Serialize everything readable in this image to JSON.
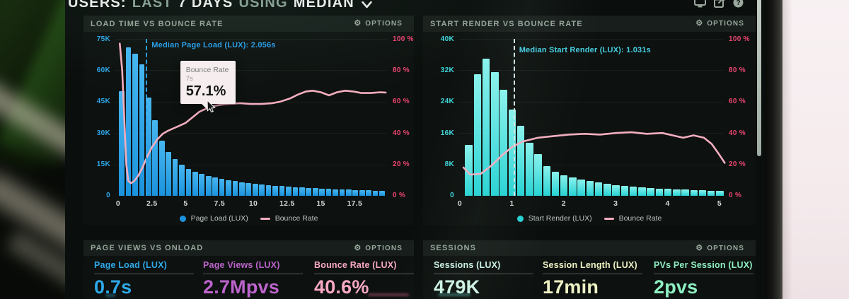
{
  "header": {
    "segments": [
      {
        "text": "USERS:",
        "emphasis": "bright"
      },
      {
        "text": "LAST",
        "emphasis": "dim"
      },
      {
        "text": "7 DAYS",
        "emphasis": "bright"
      },
      {
        "text": "USING",
        "emphasis": "dim"
      },
      {
        "text": "MEDIAN",
        "emphasis": "bright"
      }
    ],
    "dropdown_icon": "chevron-down"
  },
  "window_controls": [
    {
      "icon": "display-icon"
    },
    {
      "icon": "share-icon"
    },
    {
      "icon": "help-icon"
    }
  ],
  "icons": {
    "gear": "⚙"
  },
  "chart_data": [
    {
      "type": "bar+line",
      "title": "LOAD TIME VS BOUNCE RATE",
      "options_label": "OPTIONS",
      "x_unit": "seconds",
      "x_ticks": [
        {
          "label": "0",
          "v": 0
        },
        {
          "label": "2.5",
          "v": 2.5
        },
        {
          "label": "5",
          "v": 5
        },
        {
          "label": "7.5",
          "v": 7.5
        },
        {
          "label": "10",
          "v": 10
        },
        {
          "label": "12.5",
          "v": 12.5
        },
        {
          "label": "15",
          "v": 15
        },
        {
          "label": "17.5",
          "v": 17.5
        }
      ],
      "left_axis": {
        "ticks": [
          "75K",
          "60K",
          "45K",
          "30K",
          "15K",
          "0"
        ],
        "max": 75000,
        "color": "#2ea8ea"
      },
      "right_axis": {
        "ticks": [
          "100 %",
          "80 %",
          "60 %",
          "40 %",
          "20 %",
          "0 %"
        ],
        "max": 100,
        "color": "#ee4673"
      },
      "bar_series": {
        "name": "Page Load (LUX)",
        "color": "#1b93dd",
        "color_top": "#47b6f0",
        "x_start": 0.06,
        "slot": 0.494,
        "values_k": [
          50,
          71,
          68,
          63,
          47,
          36,
          26.5,
          21,
          17.5,
          15,
          13,
          11.5,
          10.5,
          9.6,
          8.8,
          8.1,
          7.5,
          7,
          6.5,
          6.1,
          5.7,
          5.4,
          5.1,
          4.8,
          4.6,
          4.4,
          4.2,
          4,
          3.8,
          3.6,
          3.5,
          3.3,
          3.2,
          3,
          2.9,
          2.8,
          2.7,
          2.6,
          2.5,
          2.4
        ]
      },
      "line_series": {
        "name": "Bounce Rate",
        "color": "#f3aec0",
        "points_x_pct": [
          [
            0.12,
            97
          ],
          [
            0.3,
            80
          ],
          [
            0.45,
            50
          ],
          [
            0.6,
            20
          ],
          [
            0.75,
            9.5
          ],
          [
            0.95,
            8
          ],
          [
            1.2,
            9.5
          ],
          [
            1.5,
            13
          ],
          [
            1.8,
            18
          ],
          [
            2.1,
            24
          ],
          [
            2.5,
            31
          ],
          [
            2.9,
            36
          ],
          [
            3.3,
            39.5
          ],
          [
            3.7,
            41.5
          ],
          [
            4.1,
            43
          ],
          [
            4.5,
            44.5
          ],
          [
            5,
            46.5
          ],
          [
            5.5,
            50
          ],
          [
            6,
            53.5
          ],
          [
            6.5,
            55.5
          ],
          [
            7,
            57.1
          ],
          [
            7.6,
            58
          ],
          [
            8.2,
            58.5
          ],
          [
            9,
            59
          ],
          [
            9.8,
            58.5
          ],
          [
            10.6,
            58.5
          ],
          [
            11.4,
            59
          ],
          [
            12,
            60
          ],
          [
            12.7,
            62
          ],
          [
            13.3,
            64.5
          ],
          [
            13.9,
            66.5
          ],
          [
            14.4,
            67
          ],
          [
            15,
            66
          ],
          [
            15.6,
            64
          ],
          [
            16.2,
            66
          ],
          [
            16.8,
            67
          ],
          [
            17.4,
            66.5
          ],
          [
            18,
            65.5
          ],
          [
            18.7,
            65.5
          ],
          [
            19.4,
            66
          ],
          [
            19.8,
            65.8
          ]
        ]
      },
      "median_line": {
        "label": "Median Page Load (LUX): 2.056s",
        "x": 2.056,
        "line_color": "#2b9fe8",
        "label_color": "#2b9fe8"
      },
      "tooltip": {
        "series": "Bounce Rate",
        "x_value": "7s",
        "value": "57.1%",
        "x": 7,
        "pct": 57.1
      }
    },
    {
      "type": "bar+line",
      "title": "START RENDER VS BOUNCE RATE",
      "options_label": "OPTIONS",
      "x_unit": "seconds",
      "x_ticks": [
        {
          "label": "0",
          "v": 0
        },
        {
          "label": "1",
          "v": 1
        },
        {
          "label": "2",
          "v": 2
        },
        {
          "label": "3",
          "v": 3
        },
        {
          "label": "4",
          "v": 4
        },
        {
          "label": "5",
          "v": 5
        }
      ],
      "left_axis": {
        "ticks": [
          "40K",
          "32K",
          "24K",
          "16K",
          "8K",
          "0"
        ],
        "max": 40000,
        "color": "#3fd8dc"
      },
      "right_axis": {
        "ticks": [
          "100 %",
          "80 %",
          "60 %",
          "40 %",
          "20 %",
          "0 %"
        ],
        "max": 100,
        "color": "#ee4673"
      },
      "bar_series": {
        "name": "Start Render (LUX)",
        "color": "#27d2d4",
        "color_top": "#8af2ec",
        "x_start": 0.1,
        "slot": 0.1667,
        "values_k": [
          13,
          31,
          35,
          31.5,
          27,
          22,
          17.8,
          13.5,
          10.6,
          7.6,
          6.2,
          5.3,
          4.7,
          4.2,
          3.8,
          3.4,
          3.1,
          2.8,
          2.6,
          2.4,
          2.2,
          2.05,
          1.9,
          1.8,
          1.7,
          1.6,
          1.5,
          1.4,
          1.3,
          1.2
        ]
      },
      "line_series": {
        "name": "Bounce Rate",
        "color": "#f3aec0",
        "points_x_pct": [
          [
            0.07,
            18
          ],
          [
            0.2,
            13.5
          ],
          [
            0.4,
            14
          ],
          [
            0.6,
            19
          ],
          [
            0.8,
            25.5
          ],
          [
            1,
            31
          ],
          [
            1.2,
            34.5
          ],
          [
            1.5,
            37
          ],
          [
            1.8,
            38
          ],
          [
            2.1,
            39
          ],
          [
            2.4,
            39.5
          ],
          [
            2.7,
            39
          ],
          [
            3,
            40
          ],
          [
            3.3,
            40.5
          ],
          [
            3.6,
            39.5
          ],
          [
            3.9,
            40
          ],
          [
            4.1,
            38.5
          ],
          [
            4.3,
            37
          ],
          [
            4.5,
            38.5
          ],
          [
            4.7,
            37
          ],
          [
            4.85,
            33
          ],
          [
            5,
            26
          ],
          [
            5.1,
            21
          ]
        ]
      },
      "median_line": {
        "label": "Median Start Render (LUX): 1.031s",
        "x": 1.031,
        "line_color": "#cfe6e4",
        "label_color": "#46cfe2"
      }
    }
  ],
  "metric_panels": [
    {
      "title": "PAGE VIEWS VS ONLOAD",
      "options_label": "OPTIONS",
      "metrics": [
        {
          "label": "Page Load (LUX)",
          "value": "0.7s",
          "color": "#2fa9e8"
        },
        {
          "label": "Page Views (LUX)",
          "value": "2.7Mpvs",
          "color": "#bc64cc"
        },
        {
          "label": "Bounce Rate (LUX)",
          "value": "40.6%",
          "color": "#f9a9c5"
        }
      ]
    },
    {
      "title": "SESSIONS",
      "options_label": "OPTIONS",
      "metrics": [
        {
          "label": "Sessions (LUX)",
          "value": "479K",
          "color": "#cdf2e4"
        },
        {
          "label": "Session Length (LUX)",
          "value": "17min",
          "color": "#eef2c4"
        },
        {
          "label": "PVs Per Session (LUX)",
          "value": "2pvs",
          "color": "#8df0c2"
        }
      ]
    }
  ],
  "colors": {
    "screen_bg": "#0a0e0c",
    "panel_header_text": "#95a69b",
    "bar_blue": "#1b93dd",
    "bar_cyan": "#27d2d4",
    "line_pink": "#f3aec0",
    "axis_percent_pink": "#ee4673",
    "tooltip_bg": "#f5edee"
  }
}
